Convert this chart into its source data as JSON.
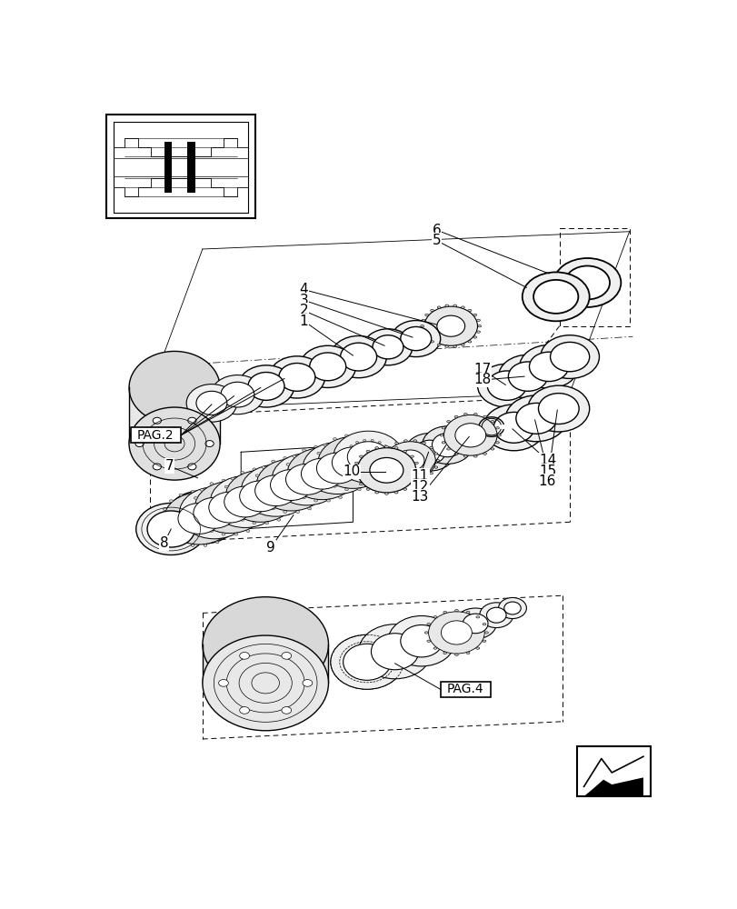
{
  "bg_color": "#ffffff",
  "fig_width": 8.12,
  "fig_height": 10.0,
  "dpi": 100,
  "pag2_label": "PAG.2",
  "pag4_label": "PAG.4"
}
